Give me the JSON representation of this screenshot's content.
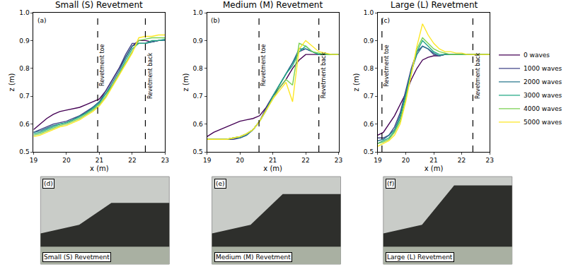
{
  "chart_data": [
    {
      "type": "line",
      "title": "Small (S) Revetment",
      "panel": "(a)",
      "x_label": "x (m)",
      "y_label": "z (m)",
      "xlim": [
        19,
        23
      ],
      "ylim": [
        0.5,
        1.0
      ],
      "xticks": [
        19,
        20,
        21,
        22,
        23
      ],
      "yticks": [
        0.5,
        0.6,
        0.7,
        0.8,
        0.9,
        {
          "value": 1.0,
          "label": "1.0"
        }
      ],
      "annotations": [
        {
          "x": 20.95,
          "text": "Revetment toe"
        },
        {
          "x": 22.4,
          "text": "Revetment back"
        }
      ],
      "x": [
        19.0,
        19.2,
        19.4,
        19.6,
        19.8,
        20.0,
        20.2,
        20.4,
        20.6,
        20.8,
        21.0,
        21.2,
        21.4,
        21.6,
        21.8,
        22.0,
        22.2,
        22.4,
        22.6,
        22.8,
        23.0
      ],
      "series": [
        {
          "name": "0 waves",
          "color": "#440154",
          "values": [
            0.58,
            0.6,
            0.62,
            0.635,
            0.645,
            0.65,
            0.655,
            0.66,
            0.67,
            0.68,
            0.69,
            0.72,
            0.76,
            0.8,
            0.84,
            0.88,
            0.9,
            0.9,
            0.895,
            0.9,
            0.9
          ]
        },
        {
          "name": "1000 waves",
          "color": "#414487",
          "values": [
            0.57,
            0.58,
            0.59,
            0.6,
            0.605,
            0.61,
            0.62,
            0.63,
            0.645,
            0.66,
            0.68,
            0.72,
            0.76,
            0.8,
            0.85,
            0.89,
            0.89,
            0.89,
            0.895,
            0.9,
            0.9
          ]
        },
        {
          "name": "2000 waves",
          "color": "#2a788e",
          "values": [
            0.57,
            0.575,
            0.585,
            0.595,
            0.6,
            0.605,
            0.615,
            0.63,
            0.64,
            0.66,
            0.68,
            0.71,
            0.75,
            0.79,
            0.84,
            0.88,
            0.89,
            0.89,
            0.895,
            0.9,
            0.9
          ]
        },
        {
          "name": "3000 waves",
          "color": "#22a884",
          "values": [
            0.565,
            0.57,
            0.58,
            0.59,
            0.6,
            0.605,
            0.615,
            0.625,
            0.64,
            0.655,
            0.675,
            0.71,
            0.74,
            0.78,
            0.83,
            0.87,
            0.89,
            0.89,
            0.9,
            0.9,
            0.905
          ]
        },
        {
          "name": "4000 waves",
          "color": "#7ad151",
          "values": [
            0.56,
            0.565,
            0.575,
            0.585,
            0.595,
            0.6,
            0.61,
            0.62,
            0.635,
            0.65,
            0.67,
            0.7,
            0.74,
            0.78,
            0.82,
            0.86,
            0.9,
            0.905,
            0.91,
            0.91,
            0.91
          ]
        },
        {
          "name": "5000 waves",
          "color": "#fde725",
          "values": [
            0.555,
            0.56,
            0.57,
            0.58,
            0.59,
            0.595,
            0.605,
            0.615,
            0.63,
            0.645,
            0.665,
            0.695,
            0.735,
            0.775,
            0.815,
            0.855,
            0.91,
            0.915,
            0.915,
            0.92,
            0.92
          ]
        }
      ]
    },
    {
      "type": "line",
      "title": "Medium (M) Revetment",
      "panel": "(b)",
      "x_label": "x (m)",
      "y_label": "z (m)",
      "xlim": [
        19,
        23
      ],
      "ylim": [
        0.5,
        1.0
      ],
      "xticks": [
        19,
        20,
        21,
        22,
        23
      ],
      "yticks": [
        0.5,
        0.6,
        0.7,
        0.8,
        0.9,
        {
          "value": 1.0,
          "label": "1.0"
        }
      ],
      "annotations": [
        {
          "x": 20.58,
          "text": "Revetment toe"
        },
        {
          "x": 22.4,
          "text": "Revetment back"
        }
      ],
      "x": [
        19.0,
        19.2,
        19.4,
        19.6,
        19.8,
        20.0,
        20.2,
        20.4,
        20.6,
        20.8,
        21.0,
        21.2,
        21.4,
        21.6,
        21.8,
        22.0,
        22.2,
        22.4,
        22.6,
        22.8,
        23.0
      ],
      "series": [
        {
          "name": "0 waves",
          "color": "#440154",
          "values": [
            0.555,
            0.57,
            0.58,
            0.59,
            0.6,
            0.61,
            0.615,
            0.62,
            0.63,
            0.66,
            0.7,
            0.73,
            0.76,
            0.8,
            0.83,
            0.85,
            0.85,
            0.85,
            0.85,
            0.85,
            0.85
          ]
        },
        {
          "name": "1000 waves",
          "color": "#414487",
          "values": [
            0.545,
            0.545,
            0.545,
            0.545,
            0.545,
            0.55,
            0.56,
            0.58,
            0.61,
            0.66,
            0.7,
            0.74,
            0.78,
            0.82,
            0.86,
            0.87,
            0.86,
            0.85,
            0.85,
            0.85,
            0.85
          ]
        },
        {
          "name": "2000 waves",
          "color": "#2a788e",
          "values": [
            0.545,
            0.545,
            0.545,
            0.545,
            0.55,
            0.55,
            0.56,
            0.58,
            0.61,
            0.65,
            0.7,
            0.74,
            0.78,
            0.82,
            0.87,
            0.87,
            0.86,
            0.85,
            0.85,
            0.85,
            0.85
          ]
        },
        {
          "name": "3000 waves",
          "color": "#22a884",
          "values": [
            0.545,
            0.545,
            0.545,
            0.545,
            0.55,
            0.555,
            0.565,
            0.58,
            0.61,
            0.65,
            0.7,
            0.74,
            0.78,
            0.81,
            0.86,
            0.88,
            0.86,
            0.85,
            0.85,
            0.85,
            0.85
          ]
        },
        {
          "name": "4000 waves",
          "color": "#7ad151",
          "values": [
            0.545,
            0.545,
            0.545,
            0.545,
            0.55,
            0.555,
            0.565,
            0.58,
            0.61,
            0.65,
            0.69,
            0.73,
            0.76,
            0.74,
            0.89,
            0.88,
            0.86,
            0.855,
            0.85,
            0.85,
            0.85
          ]
        },
        {
          "name": "5000 waves",
          "color": "#fde725",
          "values": [
            0.545,
            0.545,
            0.545,
            0.545,
            0.55,
            0.555,
            0.565,
            0.58,
            0.61,
            0.65,
            0.69,
            0.72,
            0.75,
            0.68,
            0.87,
            0.9,
            0.88,
            0.86,
            0.855,
            0.85,
            0.85
          ]
        }
      ]
    },
    {
      "type": "line",
      "title": "Large (L) Revetment",
      "panel": "(c)",
      "x_label": "x (m)",
      "y_label": "z (m)",
      "xlim": [
        19,
        23
      ],
      "ylim": [
        0.5,
        1.0
      ],
      "xticks": [
        19,
        20,
        21,
        22,
        23
      ],
      "yticks": [
        0.5,
        0.6,
        0.7,
        0.8,
        0.9,
        {
          "value": 1.0,
          "label": "1.0"
        }
      ],
      "legend": "right",
      "annotations": [
        {
          "x": 19.15,
          "text": "Revetment toe"
        },
        {
          "x": 22.4,
          "text": "Revetment back"
        }
      ],
      "x": [
        19.0,
        19.2,
        19.4,
        19.6,
        19.8,
        20.0,
        20.2,
        20.4,
        20.6,
        20.8,
        21.0,
        21.2,
        21.4,
        21.6,
        21.8,
        22.0,
        22.2,
        22.4,
        22.6,
        22.8,
        23.0
      ],
      "series": [
        {
          "name": "0 waves",
          "color": "#440154",
          "values": [
            0.56,
            0.57,
            0.6,
            0.63,
            0.67,
            0.71,
            0.76,
            0.8,
            0.83,
            0.84,
            0.845,
            0.845,
            0.85,
            0.85,
            0.85,
            0.85,
            0.85,
            0.85,
            0.85,
            0.85,
            0.85
          ]
        },
        {
          "name": "1000 waves",
          "color": "#414487",
          "values": [
            0.55,
            0.55,
            0.56,
            0.59,
            0.64,
            0.72,
            0.8,
            0.86,
            0.88,
            0.87,
            0.85,
            0.845,
            0.85,
            0.85,
            0.85,
            0.85,
            0.85,
            0.85,
            0.85,
            0.85,
            0.85
          ]
        },
        {
          "name": "2000 waves",
          "color": "#2a788e",
          "values": [
            0.54,
            0.545,
            0.56,
            0.58,
            0.63,
            0.71,
            0.79,
            0.85,
            0.88,
            0.87,
            0.855,
            0.845,
            0.85,
            0.85,
            0.85,
            0.85,
            0.85,
            0.85,
            0.85,
            0.85,
            0.85
          ]
        },
        {
          "name": "3000 waves",
          "color": "#22a884",
          "values": [
            0.53,
            0.54,
            0.55,
            0.575,
            0.62,
            0.7,
            0.79,
            0.86,
            0.9,
            0.88,
            0.86,
            0.85,
            0.85,
            0.85,
            0.85,
            0.85,
            0.85,
            0.85,
            0.85,
            0.85,
            0.85
          ]
        },
        {
          "name": "4000 waves",
          "color": "#7ad151",
          "values": [
            0.53,
            0.535,
            0.545,
            0.57,
            0.61,
            0.69,
            0.78,
            0.87,
            0.91,
            0.89,
            0.87,
            0.86,
            0.855,
            0.85,
            0.85,
            0.85,
            0.85,
            0.85,
            0.85,
            0.85,
            0.85
          ]
        },
        {
          "name": "5000 waves",
          "color": "#fde725",
          "values": [
            0.52,
            0.53,
            0.54,
            0.56,
            0.6,
            0.68,
            0.78,
            0.88,
            0.96,
            0.92,
            0.89,
            0.87,
            0.86,
            0.86,
            0.855,
            0.855,
            0.85,
            0.85,
            0.85,
            0.85,
            0.85
          ]
        }
      ]
    }
  ],
  "photos": [
    {
      "label": "(d)",
      "caption": "Small (S) Revetment"
    },
    {
      "label": "(e)",
      "caption": "Medium (M) Revetment"
    },
    {
      "label": "(f)",
      "caption": "Large (L) Revetment"
    }
  ]
}
